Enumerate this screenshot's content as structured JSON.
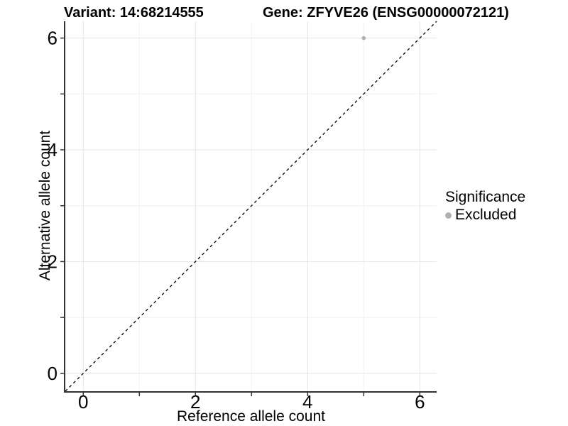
{
  "titles": {
    "variant": "Variant: 14:68214555",
    "gene": "Gene: ZFYVE26 (ENSG00000072121)"
  },
  "axes": {
    "x_label": "Reference allele count",
    "y_label": "Alternative allele count"
  },
  "legend": {
    "title": "Significance",
    "items": [
      {
        "label": "Excluded",
        "color": "#b0b0b0"
      }
    ]
  },
  "colors": {
    "axis_line": "#333333",
    "tick_mark": "#333333",
    "tick_label": "#000000",
    "grid_major": "#e4e4e4",
    "grid_minor": "#f1f1f1",
    "reference_line": "#000000",
    "point": "#b0b0b0",
    "panel_background": "#ffffff"
  },
  "chart_data": {
    "type": "scatter",
    "title": "Variant: 14:68214555 | Gene: ZFYVE26 (ENSG00000072121)",
    "xlabel": "Reference allele count",
    "ylabel": "Alternative allele count",
    "xlim": [
      -0.32,
      6.3
    ],
    "ylim": [
      -0.32,
      6.3
    ],
    "x_ticks": {
      "values": [
        0,
        1,
        2,
        3,
        4,
        5,
        6
      ],
      "labels": [
        "0",
        "",
        "2",
        "",
        "4",
        "",
        "6"
      ]
    },
    "y_ticks": {
      "values": [
        0,
        1,
        2,
        3,
        4,
        5,
        6
      ],
      "labels": [
        "0",
        "",
        "2",
        "",
        "4",
        "",
        "6"
      ]
    },
    "grid": {
      "major": [
        0,
        2,
        4,
        6
      ],
      "minor": [
        1,
        3,
        5
      ],
      "on": true
    },
    "series": [
      {
        "name": "Excluded",
        "color": "#b0b0b0",
        "points": [
          [
            5,
            6
          ]
        ]
      }
    ],
    "reference_line": {
      "type": "identity",
      "style": "dashed",
      "from": [
        -0.32,
        -0.32
      ],
      "to": [
        6.3,
        6.3
      ]
    },
    "legend_position": "right"
  }
}
